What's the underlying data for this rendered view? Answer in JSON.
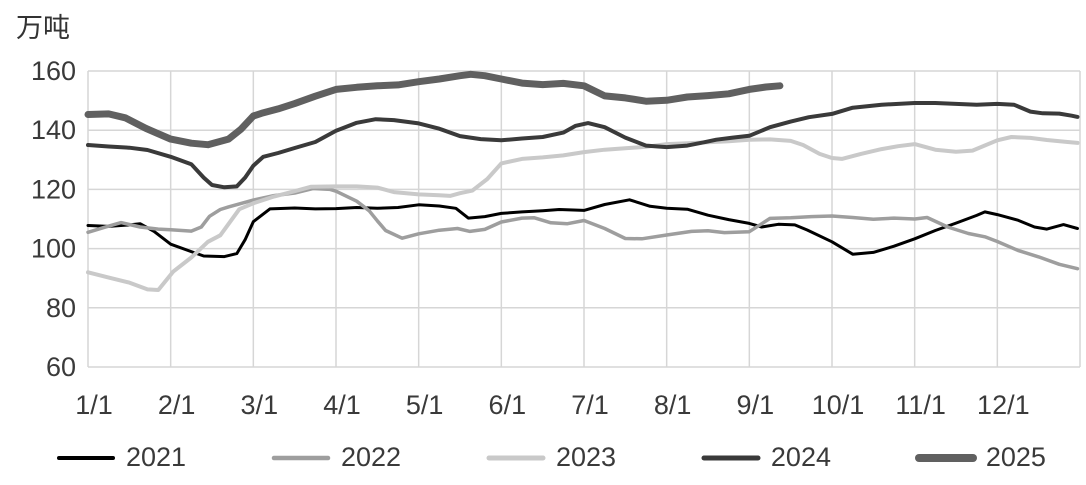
{
  "unit_label": "万吨",
  "chart_data": {
    "type": "line",
    "title": "",
    "ylabel": "万吨",
    "xlabel": "",
    "ylim": [
      60,
      160
    ],
    "yticks": [
      160,
      140,
      120,
      100,
      80,
      60
    ],
    "x_tick_labels": [
      "1/1",
      "2/1",
      "3/1",
      "4/1",
      "5/1",
      "6/1",
      "7/1",
      "8/1",
      "9/1",
      "10/1",
      "11/1",
      "12/1"
    ],
    "x_axis_note": "x in month units: 0 = Jan 1, 11 = Dec 1, 12 = year end",
    "grid": true,
    "legend_position": "bottom",
    "gridline_color": "#d6d6d6",
    "text_color": "#3a3a3a",
    "background_color": "#ffffff",
    "series": [
      {
        "name": "2021",
        "color": "#000000",
        "width": 3,
        "points": [
          [
            0,
            107.8
          ],
          [
            0.25,
            107.5
          ],
          [
            0.5,
            108
          ],
          [
            0.63,
            108.4
          ],
          [
            0.8,
            105.8
          ],
          [
            1,
            101.5
          ],
          [
            1.25,
            99
          ],
          [
            1.4,
            97.5
          ],
          [
            1.65,
            97.3
          ],
          [
            1.8,
            98.3
          ],
          [
            1.9,
            103
          ],
          [
            2,
            109.1
          ],
          [
            2.2,
            113.4
          ],
          [
            2.5,
            113.7
          ],
          [
            2.75,
            113.4
          ],
          [
            3,
            113.5
          ],
          [
            3.25,
            113.9
          ],
          [
            3.5,
            113.6
          ],
          [
            3.75,
            113.9
          ],
          [
            4,
            114.8
          ],
          [
            4.25,
            114.4
          ],
          [
            4.45,
            113.6
          ],
          [
            4.6,
            110.3
          ],
          [
            4.8,
            110.8
          ],
          [
            5,
            111.9
          ],
          [
            5.25,
            112.4
          ],
          [
            5.5,
            112.8
          ],
          [
            5.7,
            113.2
          ],
          [
            6,
            112.9
          ],
          [
            6.25,
            114.9
          ],
          [
            6.55,
            116.5
          ],
          [
            6.8,
            114.3
          ],
          [
            7,
            113.6
          ],
          [
            7.25,
            113.3
          ],
          [
            7.5,
            111.3
          ],
          [
            7.75,
            109.8
          ],
          [
            8,
            108.5
          ],
          [
            8.15,
            107.3
          ],
          [
            8.35,
            108.2
          ],
          [
            8.55,
            108
          ],
          [
            8.7,
            106.3
          ],
          [
            9,
            102.3
          ],
          [
            9.25,
            98.1
          ],
          [
            9.5,
            98.7
          ],
          [
            9.75,
            100.8
          ],
          [
            10,
            103.3
          ],
          [
            10.25,
            106.1
          ],
          [
            10.5,
            108.6
          ],
          [
            10.75,
            111.2
          ],
          [
            10.85,
            112.4
          ],
          [
            11,
            111.5
          ],
          [
            11.25,
            109.6
          ],
          [
            11.45,
            107.3
          ],
          [
            11.6,
            106.6
          ],
          [
            11.8,
            108.1
          ],
          [
            11.97,
            106.8
          ]
        ]
      },
      {
        "name": "2022",
        "color": "#9e9e9e",
        "width": 3.5,
        "points": [
          [
            0,
            105.5
          ],
          [
            0.2,
            107.2
          ],
          [
            0.4,
            108.8
          ],
          [
            0.63,
            107.3
          ],
          [
            0.85,
            106.6
          ],
          [
            1,
            106.4
          ],
          [
            1.25,
            105.9
          ],
          [
            1.37,
            107.3
          ],
          [
            1.47,
            110.9
          ],
          [
            1.6,
            113.2
          ],
          [
            1.7,
            114.1
          ],
          [
            2,
            116.4
          ],
          [
            2.25,
            117.9
          ],
          [
            2.5,
            118.8
          ],
          [
            2.72,
            120.3
          ],
          [
            2.93,
            120
          ],
          [
            3,
            119.4
          ],
          [
            3.25,
            116
          ],
          [
            3.4,
            112.8
          ],
          [
            3.5,
            109.4
          ],
          [
            3.6,
            106.1
          ],
          [
            3.8,
            103.5
          ],
          [
            4,
            105
          ],
          [
            4.25,
            106.2
          ],
          [
            4.47,
            106.8
          ],
          [
            4.62,
            105.8
          ],
          [
            4.8,
            106.5
          ],
          [
            5,
            109
          ],
          [
            5.25,
            110.3
          ],
          [
            5.4,
            110.4
          ],
          [
            5.6,
            108.7
          ],
          [
            5.8,
            108.4
          ],
          [
            6,
            109.5
          ],
          [
            6.25,
            106.8
          ],
          [
            6.5,
            103.4
          ],
          [
            6.7,
            103.3
          ],
          [
            7,
            104.6
          ],
          [
            7.3,
            105.8
          ],
          [
            7.5,
            106
          ],
          [
            7.7,
            105.4
          ],
          [
            8,
            105.7
          ],
          [
            8.25,
            110.2
          ],
          [
            8.5,
            110.4
          ],
          [
            8.75,
            110.8
          ],
          [
            9,
            111
          ],
          [
            9.25,
            110.5
          ],
          [
            9.5,
            109.9
          ],
          [
            9.75,
            110.3
          ],
          [
            10,
            110
          ],
          [
            10.15,
            110.5
          ],
          [
            10.4,
            107.3
          ],
          [
            10.65,
            105.1
          ],
          [
            10.85,
            104
          ],
          [
            11,
            102.4
          ],
          [
            11.25,
            99.4
          ],
          [
            11.5,
            97.2
          ],
          [
            11.75,
            94.7
          ],
          [
            11.97,
            93.2
          ]
        ]
      },
      {
        "name": "2023",
        "color": "#c9c9c9",
        "width": 4,
        "points": [
          [
            0,
            92
          ],
          [
            0.25,
            90.2
          ],
          [
            0.5,
            88.5
          ],
          [
            0.72,
            86.2
          ],
          [
            0.85,
            86
          ],
          [
            1.03,
            92.2
          ],
          [
            1.25,
            97
          ],
          [
            1.45,
            102.3
          ],
          [
            1.6,
            104.5
          ],
          [
            1.83,
            113.3
          ],
          [
            2,
            115.3
          ],
          [
            2.25,
            117.6
          ],
          [
            2.5,
            119.4
          ],
          [
            2.7,
            120.9
          ],
          [
            3,
            121
          ],
          [
            3.25,
            121
          ],
          [
            3.5,
            120.6
          ],
          [
            3.7,
            119.1
          ],
          [
            4,
            118.3
          ],
          [
            4.25,
            118
          ],
          [
            4.38,
            117.8
          ],
          [
            4.5,
            118.7
          ],
          [
            4.65,
            119.6
          ],
          [
            4.83,
            123.5
          ],
          [
            5,
            128.8
          ],
          [
            5.25,
            130.3
          ],
          [
            5.5,
            130.8
          ],
          [
            5.75,
            131.5
          ],
          [
            6,
            132.6
          ],
          [
            6.25,
            133.4
          ],
          [
            6.5,
            133.9
          ],
          [
            6.75,
            134.4
          ],
          [
            7,
            135.3
          ],
          [
            7.25,
            135.6
          ],
          [
            7.5,
            135.9
          ],
          [
            7.75,
            136.3
          ],
          [
            8,
            136.8
          ],
          [
            8.25,
            136.9
          ],
          [
            8.5,
            136.4
          ],
          [
            8.65,
            135
          ],
          [
            8.85,
            132
          ],
          [
            9,
            130.6
          ],
          [
            9.12,
            130.3
          ],
          [
            9.35,
            132
          ],
          [
            9.6,
            133.6
          ],
          [
            9.8,
            134.6
          ],
          [
            10,
            135.3
          ],
          [
            10.25,
            133.4
          ],
          [
            10.5,
            132.7
          ],
          [
            10.7,
            133.1
          ],
          [
            11,
            136.6
          ],
          [
            11.17,
            137.7
          ],
          [
            11.4,
            137.4
          ],
          [
            11.6,
            136.7
          ],
          [
            11.85,
            136
          ],
          [
            11.97,
            135.7
          ]
        ]
      },
      {
        "name": "2024",
        "color": "#3a3a3a",
        "width": 4,
        "points": [
          [
            0,
            135
          ],
          [
            0.25,
            134.5
          ],
          [
            0.5,
            134.1
          ],
          [
            0.72,
            133.3
          ],
          [
            1,
            131
          ],
          [
            1.25,
            128.5
          ],
          [
            1.4,
            124
          ],
          [
            1.5,
            121.5
          ],
          [
            1.65,
            120.7
          ],
          [
            1.8,
            121
          ],
          [
            1.9,
            124
          ],
          [
            2,
            128
          ],
          [
            2.12,
            131
          ],
          [
            2.3,
            132.3
          ],
          [
            2.5,
            134
          ],
          [
            2.75,
            136
          ],
          [
            3,
            139.8
          ],
          [
            3.25,
            142.5
          ],
          [
            3.48,
            143.7
          ],
          [
            3.7,
            143.4
          ],
          [
            4,
            142.3
          ],
          [
            4.25,
            140.5
          ],
          [
            4.5,
            138
          ],
          [
            4.75,
            137
          ],
          [
            5,
            136.6
          ],
          [
            5.25,
            137.2
          ],
          [
            5.5,
            137.7
          ],
          [
            5.75,
            139.2
          ],
          [
            5.9,
            141.5
          ],
          [
            6.05,
            142.4
          ],
          [
            6.25,
            141
          ],
          [
            6.5,
            137.5
          ],
          [
            6.75,
            134.8
          ],
          [
            7,
            134.3
          ],
          [
            7.25,
            134.8
          ],
          [
            7.45,
            135.9
          ],
          [
            7.6,
            136.8
          ],
          [
            7.8,
            137.5
          ],
          [
            8,
            138.1
          ],
          [
            8.25,
            141
          ],
          [
            8.5,
            142.9
          ],
          [
            8.72,
            144.4
          ],
          [
            9,
            145.5
          ],
          [
            9.25,
            147.6
          ],
          [
            9.6,
            148.6
          ],
          [
            10,
            149.2
          ],
          [
            10.25,
            149.2
          ],
          [
            10.5,
            148.9
          ],
          [
            10.75,
            148.6
          ],
          [
            11,
            148.9
          ],
          [
            11.2,
            148.6
          ],
          [
            11.4,
            146.3
          ],
          [
            11.55,
            145.7
          ],
          [
            11.75,
            145.6
          ],
          [
            11.9,
            144.9
          ],
          [
            11.97,
            144.5
          ]
        ]
      },
      {
        "name": "2025",
        "color": "#606060",
        "width": 7,
        "points": [
          [
            0,
            145.3
          ],
          [
            0.25,
            145.5
          ],
          [
            0.45,
            144.2
          ],
          [
            0.7,
            140.6
          ],
          [
            1,
            137
          ],
          [
            1.25,
            135.6
          ],
          [
            1.45,
            135.1
          ],
          [
            1.7,
            137
          ],
          [
            1.85,
            140.3
          ],
          [
            2,
            144.8
          ],
          [
            2.1,
            145.7
          ],
          [
            2.3,
            147.2
          ],
          [
            2.5,
            149
          ],
          [
            2.75,
            151.5
          ],
          [
            3,
            153.8
          ],
          [
            3.25,
            154.5
          ],
          [
            3.5,
            155
          ],
          [
            3.75,
            155.3
          ],
          [
            4,
            156.4
          ],
          [
            4.25,
            157.3
          ],
          [
            4.5,
            158.4
          ],
          [
            4.63,
            158.9
          ],
          [
            4.8,
            158.4
          ],
          [
            5,
            157.3
          ],
          [
            5.25,
            155.9
          ],
          [
            5.5,
            155.4
          ],
          [
            5.75,
            155.8
          ],
          [
            6,
            155
          ],
          [
            6.25,
            151.6
          ],
          [
            6.5,
            150.9
          ],
          [
            6.75,
            149.8
          ],
          [
            7,
            150.1
          ],
          [
            7.25,
            151.2
          ],
          [
            7.5,
            151.7
          ],
          [
            7.75,
            152.3
          ],
          [
            8,
            153.8
          ],
          [
            8.2,
            154.6
          ],
          [
            8.37,
            155
          ]
        ]
      }
    ]
  }
}
